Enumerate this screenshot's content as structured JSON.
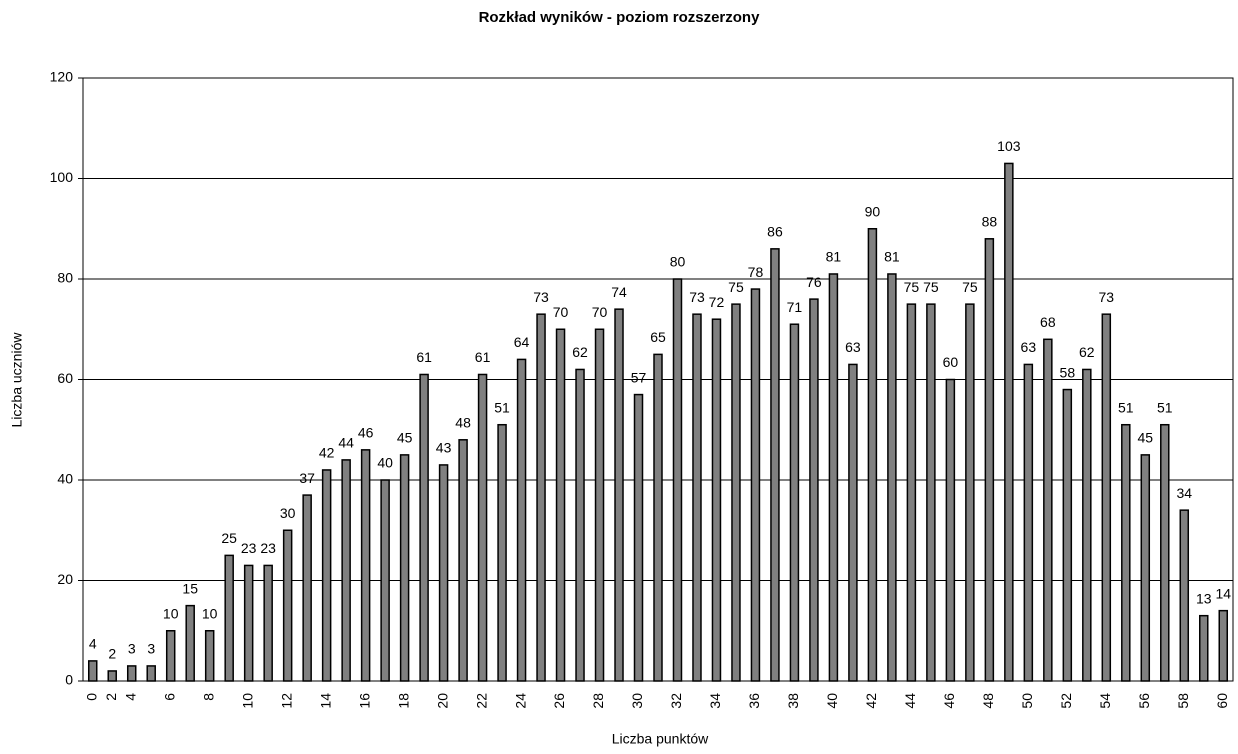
{
  "chart_data": {
    "type": "bar",
    "title": "Rozkład wyników - poziom rozszerzony",
    "x_label": "Liczba punktów",
    "y_label": "Liczba uczniów",
    "categories": [
      "0",
      "2",
      "4",
      null,
      "6",
      null,
      "8",
      null,
      "10",
      null,
      "12",
      null,
      "14",
      null,
      "16",
      null,
      "18",
      null,
      "20",
      null,
      "22",
      null,
      "24",
      null,
      "26",
      null,
      "28",
      null,
      "30",
      null,
      "32",
      null,
      "34",
      null,
      "36",
      null,
      "38",
      null,
      "40",
      null,
      "42",
      null,
      "44",
      null,
      "46",
      null,
      "48",
      null,
      "50",
      null,
      "52",
      null,
      "54",
      null,
      "56",
      null,
      "58",
      null,
      "60"
    ],
    "values": [
      4,
      2,
      3,
      3,
      10,
      15,
      10,
      25,
      23,
      23,
      30,
      37,
      42,
      44,
      46,
      40,
      45,
      61,
      43,
      48,
      61,
      51,
      64,
      73,
      70,
      62,
      70,
      74,
      57,
      65,
      80,
      73,
      72,
      75,
      78,
      86,
      71,
      76,
      81,
      63,
      90,
      81,
      75,
      75,
      60,
      75,
      88,
      103,
      63,
      68,
      58,
      62,
      73,
      51,
      45,
      51,
      34,
      13,
      14
    ],
    "color": "#808080",
    "ylim": [
      0,
      120
    ],
    "yticks": [
      0,
      20,
      40,
      60,
      80,
      100,
      120
    ],
    "grid": true
  }
}
